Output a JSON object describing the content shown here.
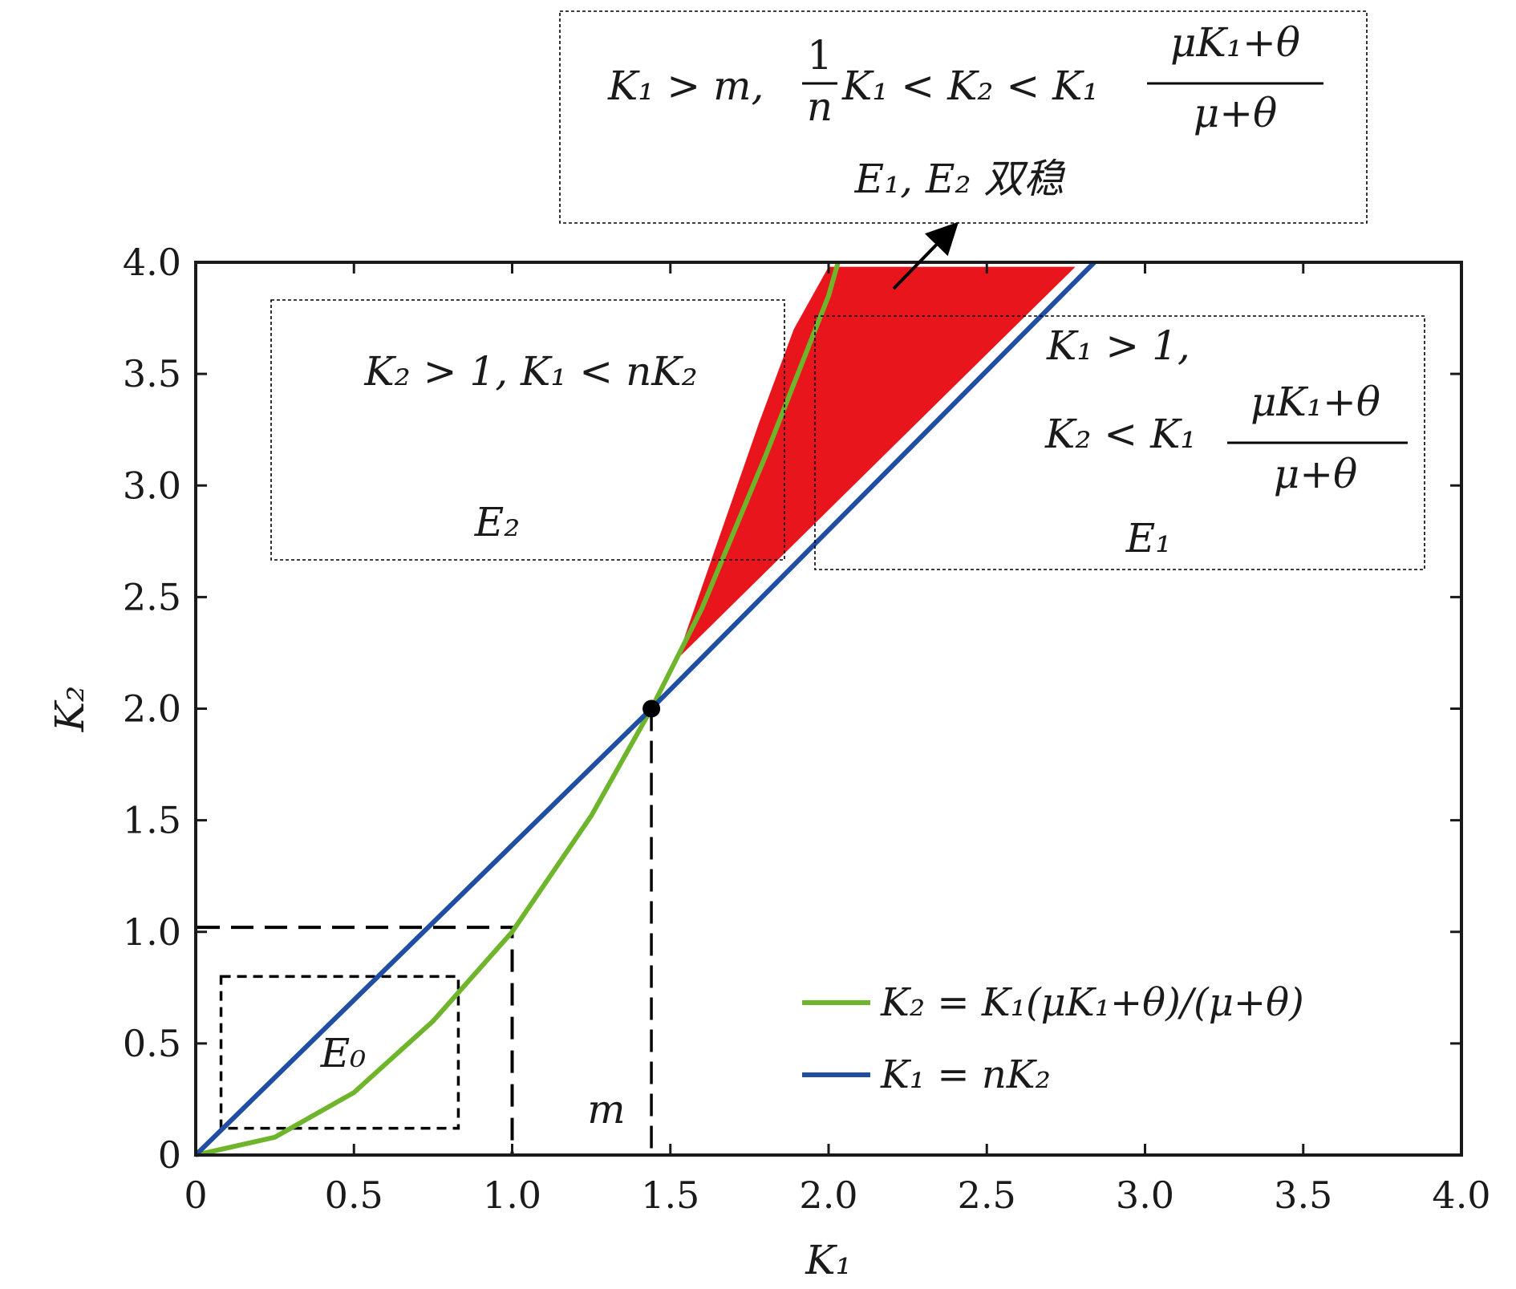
{
  "chart_data": {
    "type": "line",
    "title": "",
    "xlabel": "K₁",
    "ylabel": "K₂",
    "xlim": [
      0,
      4.0
    ],
    "ylim": [
      0,
      4.0
    ],
    "x_ticks": [
      "0",
      "0.5",
      "1.0",
      "1.5",
      "2.0",
      "2.5",
      "3.0",
      "3.5",
      "4.0"
    ],
    "y_ticks": [
      "0",
      "0.5",
      "1.0",
      "1.5",
      "2.0",
      "2.5",
      "3.0",
      "3.5",
      "4.0"
    ],
    "grid": false,
    "legend_position": "bottom-right",
    "series": [
      {
        "name": "K₂ = K₁(μK₁+θ)/(μ+θ)",
        "color": "#6fb52c",
        "x": [
          0,
          0.25,
          0.5,
          0.75,
          1.0,
          1.25,
          1.44,
          1.6,
          1.8,
          2.0,
          2.03
        ],
        "y": [
          0,
          0.08,
          0.28,
          0.6,
          1.0,
          1.52,
          2.0,
          2.45,
          3.13,
          3.85,
          4.0
        ]
      },
      {
        "name": "K₁ = nK₂",
        "color": "#1f4ea3",
        "x": [
          0,
          1.44,
          2.84
        ],
        "y": [
          0,
          2.0,
          4.0
        ]
      }
    ],
    "shaded_region": {
      "color": "#e8161c",
      "vertices": [
        [
          1.52,
          2.22
        ],
        [
          1.78,
          3.28
        ],
        [
          1.89,
          3.7
        ],
        [
          2.0,
          3.98
        ],
        [
          2.78,
          3.98
        ],
        [
          1.52,
          2.22
        ]
      ]
    },
    "marker_point": {
      "x": 1.44,
      "y": 2.0,
      "color": "#000000"
    },
    "guides": [
      {
        "kind": "dashed-box",
        "label": "E₀",
        "x": [
          0,
          1.0
        ],
        "y": [
          0,
          1.02
        ]
      },
      {
        "kind": "dotted-box",
        "x": [
          0.08,
          0.83
        ],
        "y": [
          0.12,
          0.8
        ]
      },
      {
        "kind": "dashed-vline",
        "x": 1.44,
        "y": [
          0,
          2.0
        ]
      }
    ],
    "annotations": {
      "m": "m",
      "E0": "E₀",
      "box_E2": {
        "line1": "K₂ > 1, K₁ < nK₂",
        "line2": "E₂"
      },
      "box_E1": {
        "line1": "K₁ > 1,",
        "line2_left": "K₂ < K₁",
        "frac_num": "μK₁+θ",
        "frac_den": "μ+θ",
        "line3": "E₁"
      },
      "box_bistable": {
        "part1": "K₁ > m,",
        "frac_a_num": "1",
        "frac_a_den": "n",
        "part2": "K₁ < K₂ < K₁",
        "frac_b_num": "μK₁+θ",
        "frac_b_den": "μ+θ",
        "line2": "E₁, E₂ 双稳"
      }
    }
  }
}
